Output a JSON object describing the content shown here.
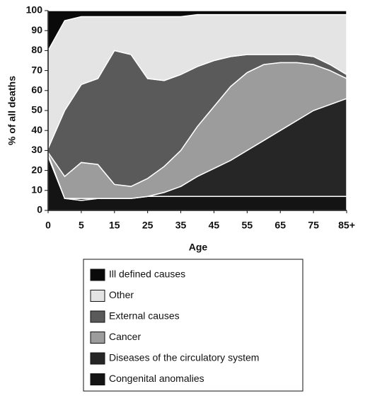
{
  "chart_data": {
    "type": "stacked_area",
    "ylabel": "% of all deaths",
    "xlabel": "Age",
    "categories": [
      "0",
      null,
      "5",
      null,
      "15",
      null,
      "25",
      null,
      "35",
      null,
      "45",
      null,
      "55",
      null,
      "65",
      null,
      "75",
      null,
      "85+"
    ],
    "series": [
      {
        "name": "Congenital anomalies",
        "color": "#141414",
        "values": [
          27,
          6,
          5,
          6,
          6,
          6,
          7,
          7,
          7,
          7,
          7,
          7,
          7,
          7,
          7,
          7,
          7,
          7,
          7
        ]
      },
      {
        "name": "Diseases of the circulatory system",
        "color": "#262626",
        "values": [
          1,
          0,
          1,
          0,
          0,
          0,
          0,
          2,
          5,
          10,
          14,
          18,
          23,
          28,
          33,
          38,
          43,
          46,
          49
        ]
      },
      {
        "name": "Cancer",
        "color": "#9c9c9c",
        "values": [
          1,
          11,
          18,
          17,
          7,
          6,
          9,
          13,
          18,
          25,
          31,
          37,
          39,
          38,
          34,
          29,
          23,
          17,
          10
        ]
      },
      {
        "name": "External causes",
        "color": "#5a5a5a",
        "values": [
          2,
          33,
          39,
          43,
          67,
          66,
          50,
          43,
          38,
          30,
          23,
          15,
          9,
          5,
          4,
          4,
          4,
          3,
          2
        ]
      },
      {
        "name": "Other",
        "color": "#e4e4e4",
        "values": [
          49,
          45,
          34,
          31,
          17,
          19,
          31,
          32,
          29,
          26,
          23,
          21,
          20,
          20,
          20,
          20,
          21,
          25,
          30
        ]
      },
      {
        "name": "Ill defined causes",
        "color": "#0a0a0a",
        "values": [
          20,
          5,
          3,
          3,
          3,
          3,
          3,
          3,
          3,
          2,
          2,
          2,
          2,
          2,
          2,
          2,
          2,
          2,
          2
        ]
      }
    ],
    "ylim": [
      0,
      100
    ],
    "yticks": [
      0,
      10,
      20,
      30,
      40,
      50,
      60,
      70,
      80,
      90,
      100
    ]
  }
}
